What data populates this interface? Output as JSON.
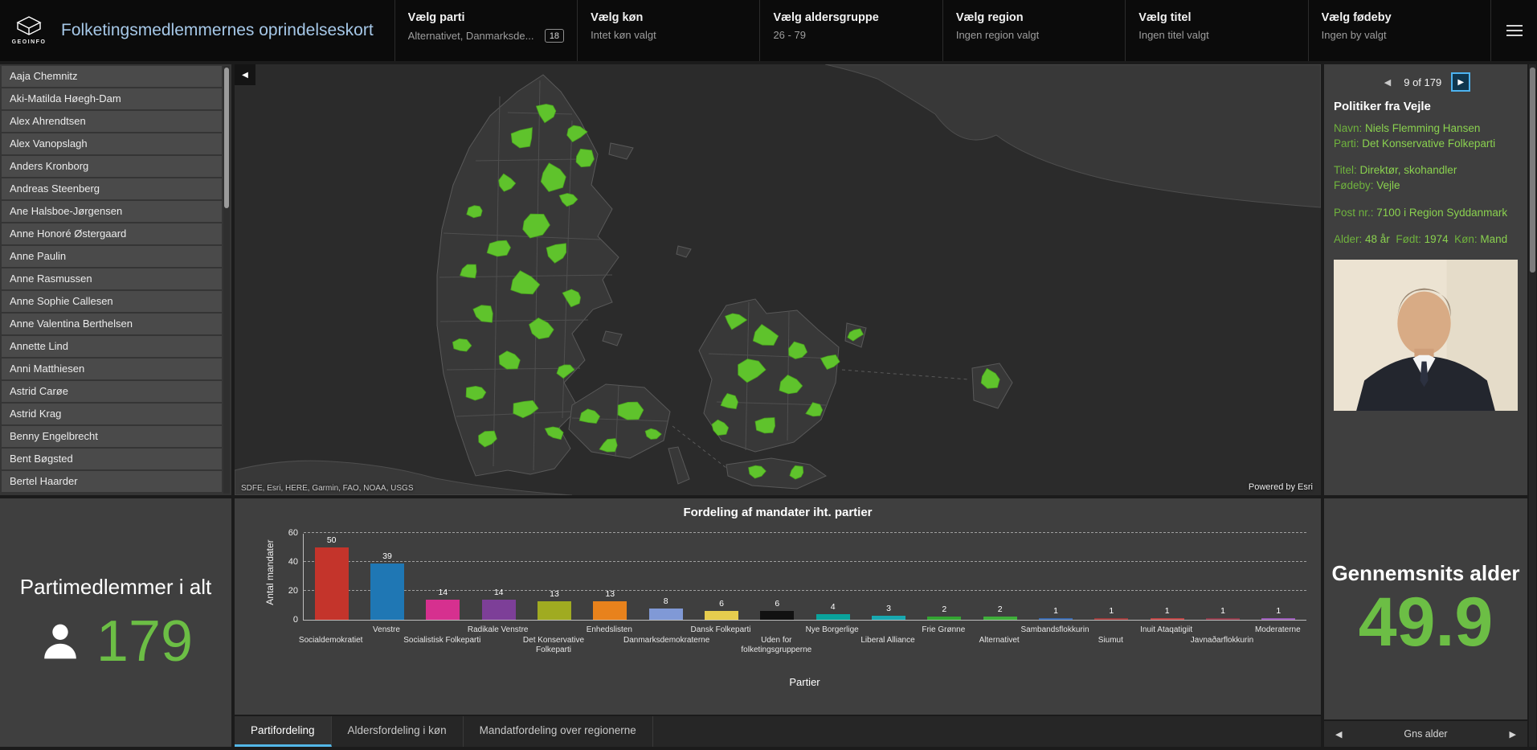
{
  "header": {
    "logo_text": "GEOINFO",
    "title": "Folketingsmedlemmernes oprindelseskort",
    "filters": [
      {
        "id": "parti",
        "label": "Vælg parti",
        "value": "Alternativet, Danmarksde...",
        "badge": "18"
      },
      {
        "id": "koen",
        "label": "Vælg køn",
        "value": "Intet køn valgt"
      },
      {
        "id": "aldersgruppe",
        "label": "Vælg aldersgruppe",
        "value": "26 - 79"
      },
      {
        "id": "region",
        "label": "Vælg region",
        "value": "Ingen region valgt"
      },
      {
        "id": "titel",
        "label": "Vælg titel",
        "value": "Ingen titel valgt"
      },
      {
        "id": "foedeby",
        "label": "Vælg fødeby",
        "value": "Ingen by valgt"
      }
    ]
  },
  "member_list": [
    "Aaja Chemnitz",
    "Aki-Matilda Høegh-Dam",
    "Alex Ahrendtsen",
    "Alex Vanopslagh",
    "Anders Kronborg",
    "Andreas Steenberg",
    "Ane Halsboe-Jørgensen",
    "Anne Honoré Østergaard",
    "Anne Paulin",
    "Anne Rasmussen",
    "Anne Sophie Callesen",
    "Anne Valentina Berthelsen",
    "Annette Lind",
    "Anni Matthiesen",
    "Astrid Carøe",
    "Astrid Krag",
    "Benny Engelbrecht",
    "Bent Bøgsted",
    "Bertel Haarder"
  ],
  "totals": {
    "title": "Partimedlemmer i alt",
    "value": "179"
  },
  "map": {
    "attribution": "SDFE, Esri, HERE, Garmin, FAO, NOAA, USGS",
    "powered_by": "Powered by Esri",
    "collapse_icon": "◀"
  },
  "details": {
    "pagination": {
      "prev_icon": "◀",
      "text": "9 of 179",
      "next_icon": "▶"
    },
    "title": "Politiker fra Vejle",
    "groups": [
      {
        "inline": false,
        "fields": [
          {
            "label": "Navn:",
            "value": "Niels Flemming Hansen"
          },
          {
            "label": "Parti:",
            "value": "Det Konservative Folkeparti"
          }
        ]
      },
      {
        "inline": false,
        "fields": [
          {
            "label": "Titel:",
            "value": "Direktør, skohandler"
          },
          {
            "label": "Fødeby:",
            "value": "Vejle"
          }
        ]
      },
      {
        "inline": false,
        "fields": [
          {
            "label": "Post nr.:",
            "value": "7100 i Region Syddanmark"
          }
        ]
      },
      {
        "inline": true,
        "fields": [
          {
            "label": "Alder:",
            "value": "48 år"
          },
          {
            "label": "Født:",
            "value": "1974"
          },
          {
            "label": "Køn:",
            "value": "Mand"
          }
        ]
      }
    ]
  },
  "chart_data": {
    "type": "bar",
    "title": "Fordeling af mandater iht. partier",
    "xlabel": "Partier",
    "ylabel": "Antal mandater",
    "ylim": [
      0,
      60
    ],
    "yticks": [
      0,
      20,
      40,
      60
    ],
    "grid": "dashed-horizontal",
    "value_labels": true,
    "categories": [
      "Socialdemokratiet",
      "Venstre",
      "Socialistisk Folkeparti",
      "Radikale Venstre",
      "Det Konservative Folkeparti",
      "Enhedslisten",
      "Danmarksdemokraterne",
      "Dansk Folkeparti",
      "Uden for folketingsgrupperne",
      "Nye Borgerlige",
      "Liberal Alliance",
      "Frie Grønne",
      "Alternativet",
      "Sambandsflokkurin",
      "Siumut",
      "Inuit Ataqatigiit",
      "Javnaðarflokkurin",
      "Moderaterne"
    ],
    "values": [
      50,
      39,
      14,
      14,
      13,
      13,
      8,
      6,
      6,
      4,
      3,
      2,
      2,
      1,
      1,
      1,
      1,
      1
    ],
    "colors": [
      "#c4342b",
      "#1f77b4",
      "#d6308f",
      "#7d3f98",
      "#a0ab21",
      "#e8821c",
      "#8099d6",
      "#e6cc4e",
      "#111111",
      "#0aa39c",
      "#18a8b0",
      "#33a532",
      "#3fae3a",
      "#3a6ab0",
      "#a03c3c",
      "#c04545",
      "#8f3a4a",
      "#9a5ab8"
    ]
  },
  "tabs": {
    "active": 0,
    "items": [
      "Partifordeling",
      "Aldersfordeling i køn",
      "Mandatfordeling over regionerne"
    ]
  },
  "average_age": {
    "title": "Gennemsnits alder",
    "value": "49.9",
    "nav": {
      "prev_icon": "◀",
      "label": "Gns alder",
      "next_icon": "▶"
    }
  },
  "colors": {
    "accent_green": "#6cbe45",
    "accent_blue": "#53b7e8",
    "title_blue": "#a6c8e8",
    "map_green": "#5fc32c"
  }
}
